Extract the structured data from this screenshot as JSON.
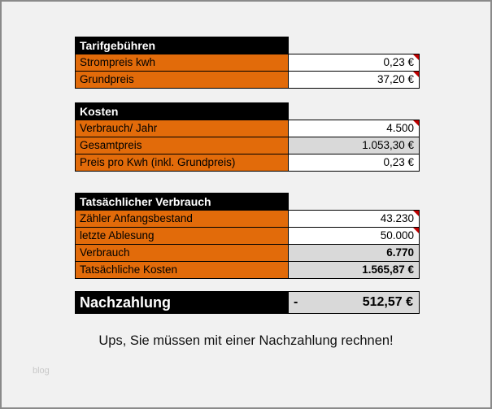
{
  "sections": [
    {
      "title": "Tarifgebühren",
      "rows": [
        {
          "label": "Strompreis kwh",
          "value": "0,23 €",
          "marker": true
        },
        {
          "label": "Grundpreis",
          "value": "37,20 €",
          "marker": true
        }
      ]
    },
    {
      "title": "Kosten",
      "rows": [
        {
          "label": "Verbrauch/ Jahr",
          "value": "4.500",
          "marker": true
        },
        {
          "label": "Gesamtpreis",
          "value": "1.053,30 €",
          "marker": false
        },
        {
          "label": "Preis pro Kwh (inkl. Grundpreis)",
          "value": "0,23 €",
          "marker": false
        }
      ]
    },
    {
      "title": "Tatsächlicher Verbrauch",
      "rows": [
        {
          "label": "Zähler Anfangsbestand",
          "value": "43.230",
          "marker": true
        },
        {
          "label": "letzte Ablesung",
          "value": "50.000",
          "marker": true
        },
        {
          "label": "Verbrauch",
          "value": "6.770",
          "marker": false
        },
        {
          "label": "Tatsächliche Kosten",
          "value": "1.565,87 €",
          "marker": false
        }
      ]
    }
  ],
  "result": {
    "label": "Nachzahlung",
    "sign": "-",
    "value": "512,57 €"
  },
  "message": "Ups, Sie müssen mit einer Nachzahlung rechnen!",
  "watermark": "blog",
  "colors": {
    "orange_cell": "#E26B0A",
    "gray_cell": "#D9D9D9",
    "header_bg": "#000000",
    "marker_red": "#C00000",
    "page_bg": "#F1F1F1"
  }
}
